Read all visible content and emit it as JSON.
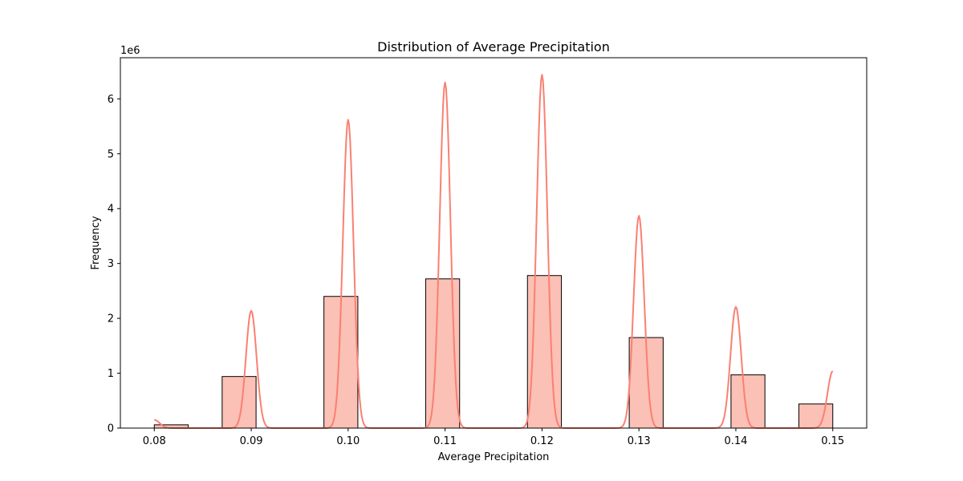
{
  "chart_data": {
    "type": "bar",
    "title": "Distribution of Average Precipitation",
    "xlabel": "Average Precipitation",
    "ylabel": "Frequency",
    "y_offset_text": "1e6",
    "xlim": [
      0.0765,
      0.1535
    ],
    "ylim": [
      0,
      6.75
    ],
    "x_ticks": [
      0.08,
      0.09,
      0.1,
      0.11,
      0.12,
      0.13,
      0.14,
      0.15
    ],
    "x_tick_labels": [
      "0.08",
      "0.09",
      "0.10",
      "0.11",
      "0.12",
      "0.13",
      "0.14",
      "0.15"
    ],
    "y_ticks": [
      0,
      1,
      2,
      3,
      4,
      5,
      6
    ],
    "y_tick_labels": [
      "0",
      "1",
      "2",
      "3",
      "4",
      "5",
      "6"
    ],
    "bin_width": 0.0035,
    "bins": [
      {
        "x": 0.08,
        "value": 0.06
      },
      {
        "x": 0.0835,
        "value": 0
      },
      {
        "x": 0.087,
        "value": 0.94
      },
      {
        "x": 0.0905,
        "value": 0
      },
      {
        "x": 0.094,
        "value": 0
      },
      {
        "x": 0.0975,
        "value": 2.4
      },
      {
        "x": 0.101,
        "value": 0
      },
      {
        "x": 0.1045,
        "value": 0
      },
      {
        "x": 0.108,
        "value": 2.72
      },
      {
        "x": 0.1115,
        "value": 0
      },
      {
        "x": 0.115,
        "value": 0
      },
      {
        "x": 0.1185,
        "value": 2.78
      },
      {
        "x": 0.122,
        "value": 0
      },
      {
        "x": 0.1255,
        "value": 0
      },
      {
        "x": 0.129,
        "value": 1.65
      },
      {
        "x": 0.1325,
        "value": 0
      },
      {
        "x": 0.136,
        "value": 0
      },
      {
        "x": 0.1395,
        "value": 0.97
      },
      {
        "x": 0.143,
        "value": 0
      },
      {
        "x": 0.1465,
        "value": 0.44
      }
    ],
    "kde_peaks": [
      {
        "x": 0.08,
        "height": 0.15
      },
      {
        "x": 0.09,
        "height": 2.14
      },
      {
        "x": 0.1,
        "height": 5.62
      },
      {
        "x": 0.11,
        "height": 6.3
      },
      {
        "x": 0.12,
        "height": 6.44
      },
      {
        "x": 0.13,
        "height": 3.87
      },
      {
        "x": 0.14,
        "height": 2.21
      },
      {
        "x": 0.15,
        "height": 1.04
      }
    ],
    "kde_sigma": 0.00055,
    "kde_x_range": [
      0.08,
      0.15
    ],
    "colors": {
      "bar_fill": "#fbc0b6",
      "bar_edge": "#000000",
      "kde_line": "#fa8072",
      "axes": "#000000",
      "background": "#ffffff"
    },
    "grid": false,
    "legend": "none"
  }
}
